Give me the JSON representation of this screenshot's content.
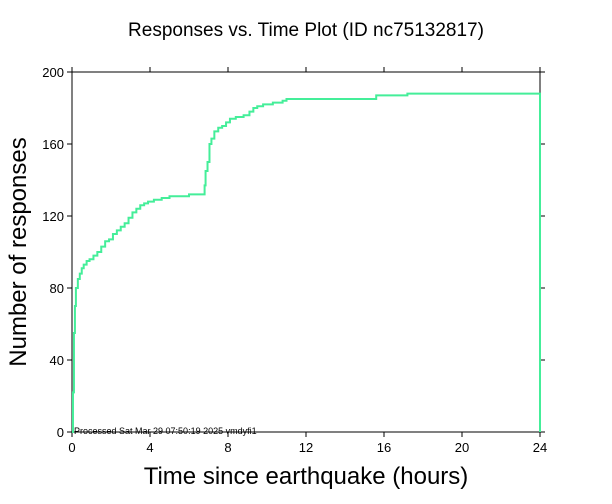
{
  "chart_data": {
    "type": "line",
    "title": "Responses vs. Time Plot (ID nc75132817)",
    "xlabel": "Time since earthquake (hours)",
    "ylabel": "Number of responses",
    "xlim": [
      0,
      24
    ],
    "ylim": [
      0,
      200
    ],
    "x_ticks": [
      0,
      4,
      8,
      12,
      16,
      20,
      24
    ],
    "y_ticks": [
      0,
      40,
      80,
      120,
      160,
      200
    ],
    "x_tick_labels": [
      "0",
      "4",
      "8",
      "12",
      "16",
      "20",
      "24"
    ],
    "y_tick_labels": [
      "0",
      "40",
      "80",
      "120",
      "160",
      "200"
    ],
    "grid": false,
    "annotation": "Processed Sat Mar 29 07:50:19 2025 vmdyfi1",
    "series": [
      {
        "color": "#44ee99",
        "step": true,
        "x": [
          0,
          0.05,
          0.1,
          0.15,
          0.2,
          0.3,
          0.4,
          0.5,
          0.6,
          0.75,
          0.9,
          1.1,
          1.3,
          1.5,
          1.7,
          1.9,
          2.1,
          2.3,
          2.5,
          2.7,
          2.9,
          3.1,
          3.3,
          3.5,
          3.7,
          3.9,
          4.2,
          4.6,
          5.0,
          5.5,
          6.0,
          6.5,
          6.8,
          6.85,
          6.95,
          7.05,
          7.15,
          7.3,
          7.5,
          7.7,
          7.9,
          8.1,
          8.4,
          8.8,
          9.1,
          9.3,
          9.5,
          9.8,
          10.3,
          10.8,
          11.0,
          11.3,
          15.6,
          17.2,
          24.0,
          24.0
        ],
        "y": [
          0,
          22,
          55,
          70,
          80,
          85,
          88,
          91,
          93,
          95,
          96,
          98,
          100,
          103,
          106,
          107,
          110,
          112,
          114,
          116,
          119,
          122,
          124,
          126,
          127,
          128,
          129,
          130,
          131,
          131,
          132,
          132,
          137,
          145,
          150,
          160,
          163,
          167,
          169,
          170,
          172,
          174,
          175,
          176,
          178,
          180,
          181,
          182,
          183,
          184,
          185,
          185,
          187,
          188,
          188,
          0
        ]
      }
    ]
  },
  "colors": {
    "line": "#44ee99",
    "axes": "#000000",
    "background": "#ffffff"
  }
}
